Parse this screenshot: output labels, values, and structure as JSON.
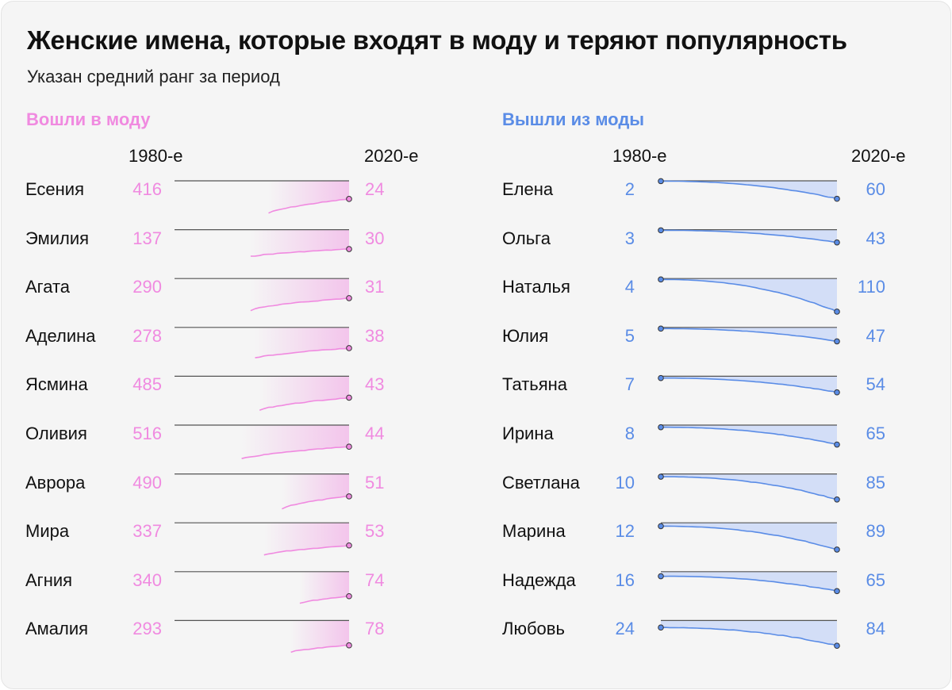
{
  "title": "Женские имена, которые входят в моду и теряют популярность",
  "subtitle": "Указан средний ранг за период",
  "colors": {
    "rising": "#f08ae0",
    "falling": "#5a8ce6",
    "falling_fill": "#d3def7",
    "baseline": "#555555",
    "dot_stroke": "#333333"
  },
  "chart_data": [
    {
      "type": "line",
      "title": "Вошли в моду",
      "x_start_label": "1980-е",
      "x_end_label": "2020-е",
      "y_scale": "rank (1 = top), sparkline per name",
      "series": [
        {
          "name": "Есения",
          "rank_1980s": 416,
          "rank_2020s": 24
        },
        {
          "name": "Эмилия",
          "rank_1980s": 137,
          "rank_2020s": 30
        },
        {
          "name": "Агата",
          "rank_1980s": 290,
          "rank_2020s": 31
        },
        {
          "name": "Аделина",
          "rank_1980s": 278,
          "rank_2020s": 38
        },
        {
          "name": "Ясмина",
          "rank_1980s": 485,
          "rank_2020s": 43
        },
        {
          "name": "Оливия",
          "rank_1980s": 516,
          "rank_2020s": 44
        },
        {
          "name": "Аврора",
          "rank_1980s": 490,
          "rank_2020s": 51
        },
        {
          "name": "Мира",
          "rank_1980s": 337,
          "rank_2020s": 53
        },
        {
          "name": "Агния",
          "rank_1980s": 340,
          "rank_2020s": 74
        },
        {
          "name": "Амалия",
          "rank_1980s": 293,
          "rank_2020s": 78
        }
      ]
    },
    {
      "type": "line",
      "title": "Вышли из моды",
      "x_start_label": "1980-е",
      "x_end_label": "2020-е",
      "y_scale": "rank (1 = top), sparkline per name",
      "series": [
        {
          "name": "Елена",
          "rank_1980s": 2,
          "rank_2020s": 60
        },
        {
          "name": "Ольга",
          "rank_1980s": 3,
          "rank_2020s": 43
        },
        {
          "name": "Наталья",
          "rank_1980s": 4,
          "rank_2020s": 110
        },
        {
          "name": "Юлия",
          "rank_1980s": 5,
          "rank_2020s": 47
        },
        {
          "name": "Татьяна",
          "rank_1980s": 7,
          "rank_2020s": 54
        },
        {
          "name": "Ирина",
          "rank_1980s": 8,
          "rank_2020s": 65
        },
        {
          "name": "Светлана",
          "rank_1980s": 10,
          "rank_2020s": 85
        },
        {
          "name": "Марина",
          "rank_1980s": 12,
          "rank_2020s": 89
        },
        {
          "name": "Надежда",
          "rank_1980s": 16,
          "rank_2020s": 65
        },
        {
          "name": "Любовь",
          "rank_1980s": 24,
          "rank_2020s": 84
        }
      ]
    }
  ]
}
